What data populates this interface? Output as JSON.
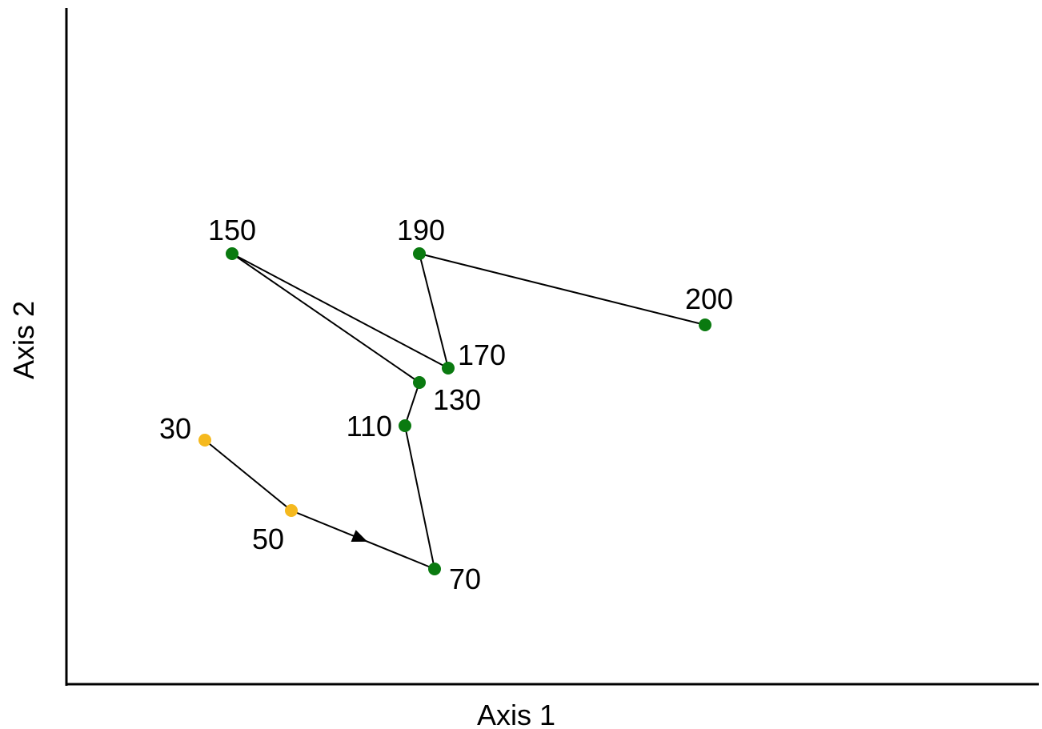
{
  "chart_data": {
    "type": "scatter",
    "title": "",
    "xlabel": "Axis 1",
    "ylabel": "Axis 2",
    "xlim": [
      0,
      1215
    ],
    "ylim": [
      0,
      845
    ],
    "grid": false,
    "legend": "none",
    "colors": {
      "early": "#f5b91e",
      "late": "#0a7a10",
      "line": "#000000",
      "axis": "#000000"
    },
    "points": [
      {
        "label": "30",
        "x": 173,
        "y": 305,
        "group": "early"
      },
      {
        "label": "50",
        "x": 281,
        "y": 217,
        "group": "early"
      },
      {
        "label": "70",
        "x": 460,
        "y": 144,
        "group": "late"
      },
      {
        "label": "110",
        "x": 423,
        "y": 323,
        "group": "late"
      },
      {
        "label": "130",
        "x": 441,
        "y": 377,
        "group": "late"
      },
      {
        "label": "150",
        "x": 207,
        "y": 538,
        "group": "late"
      },
      {
        "label": "170",
        "x": 477,
        "y": 395,
        "group": "late"
      },
      {
        "label": "190",
        "x": 441,
        "y": 538,
        "group": "late"
      },
      {
        "label": "200",
        "x": 798,
        "y": 449,
        "group": "late"
      }
    ],
    "path_order": [
      "30",
      "50",
      "70",
      "110",
      "130",
      "150",
      "170",
      "190",
      "200"
    ],
    "arrow": {
      "from": "50",
      "to": "70"
    }
  }
}
